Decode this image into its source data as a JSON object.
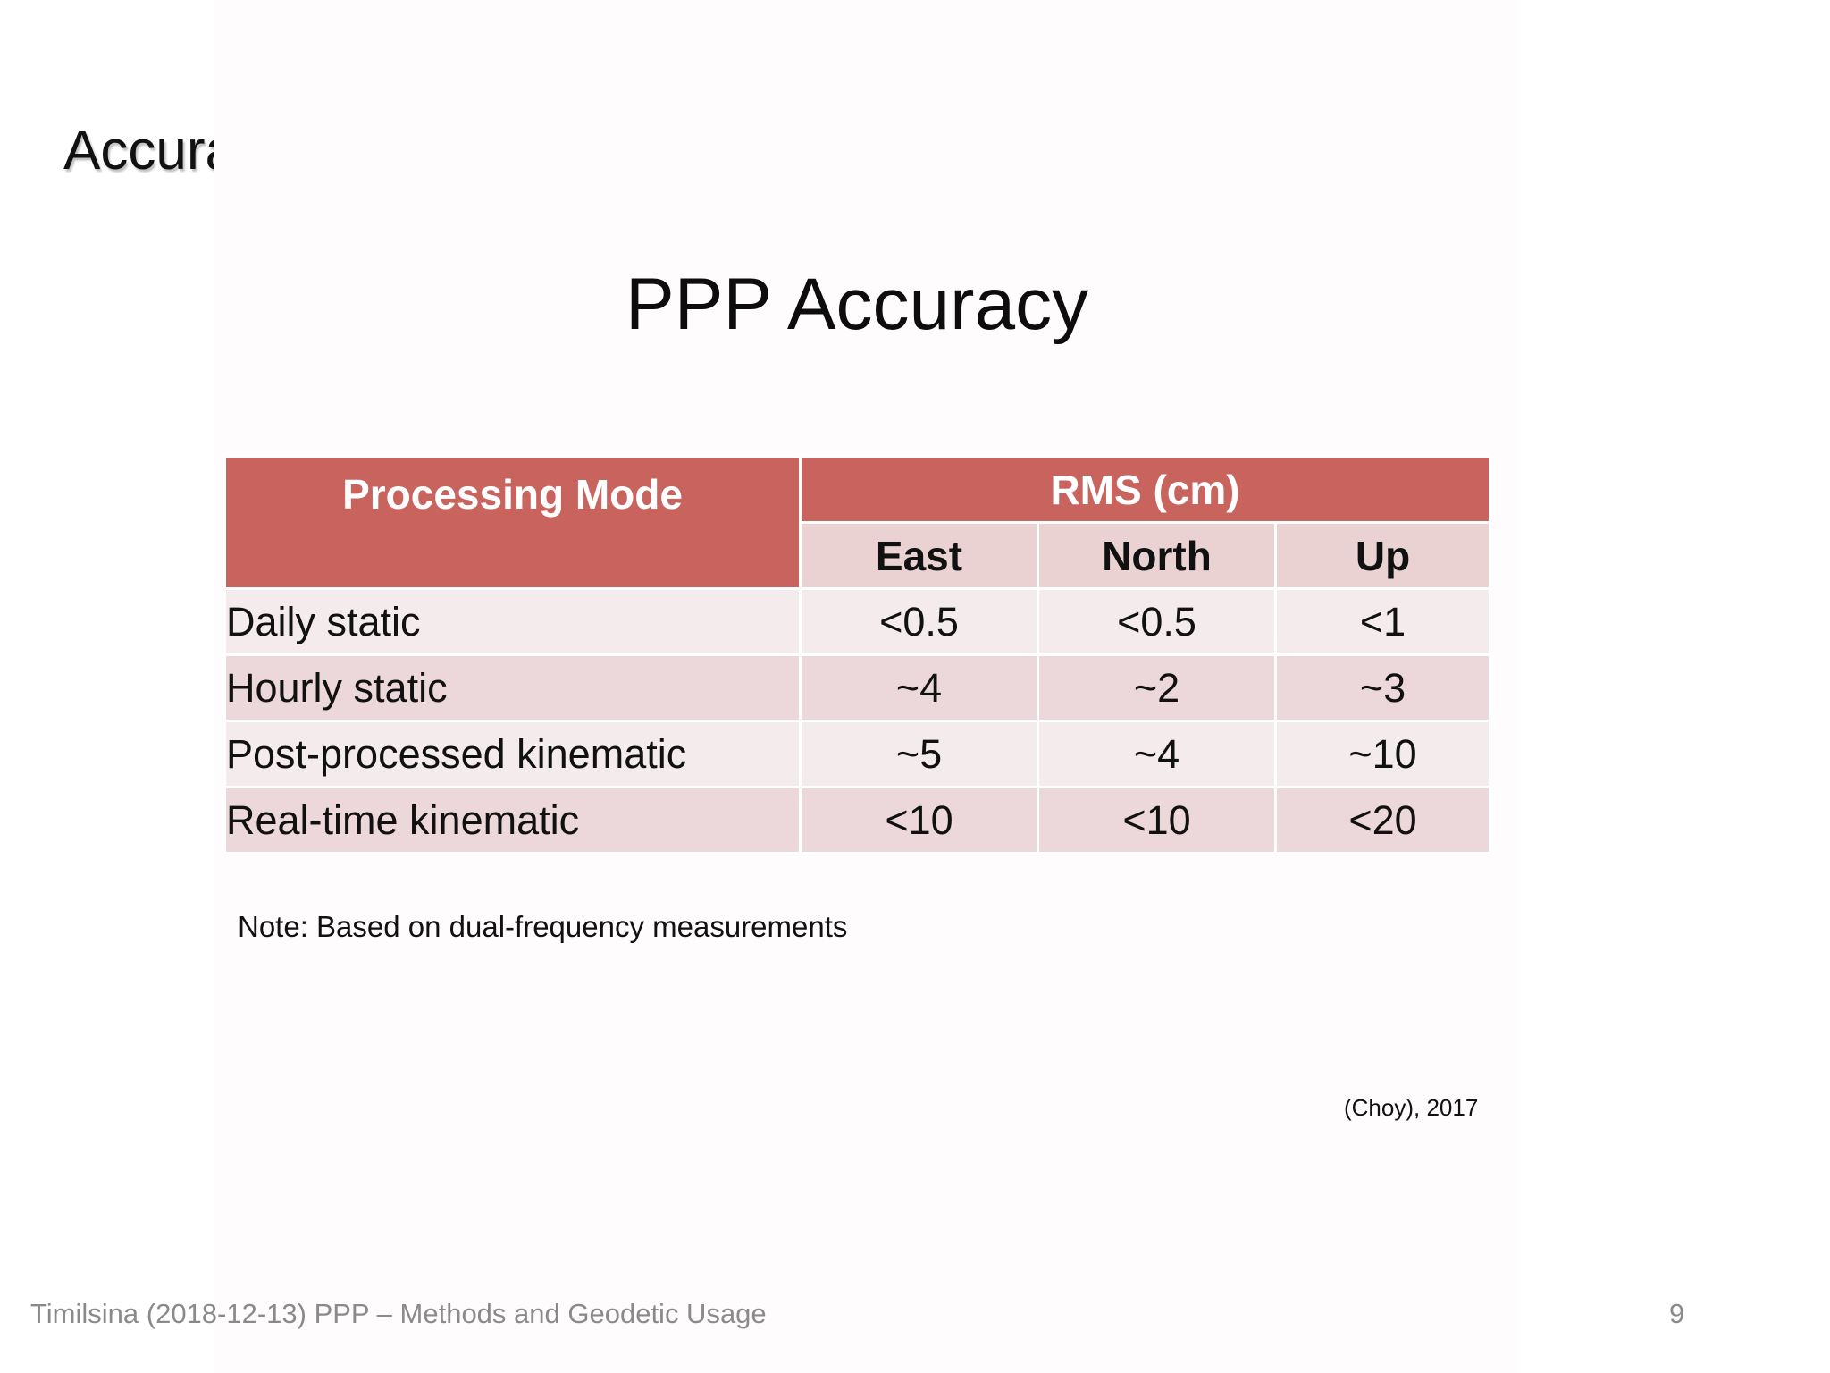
{
  "slide": {
    "heading": "Accuracy",
    "footer": "Timilsina (2018-12-13) PPP – Methods and Geodetic Usage",
    "page_number": "9"
  },
  "figure": {
    "title": "PPP Accuracy",
    "table": {
      "header_mode": "Processing Mode",
      "header_rms": "RMS (cm)",
      "subheaders": [
        "East",
        "North",
        "Up"
      ],
      "rows": [
        {
          "mode": "Daily static",
          "east": "<0.5",
          "north": "<0.5",
          "up": "<1"
        },
        {
          "mode": "Hourly static",
          "east": "~4",
          "north": "~2",
          "up": "~3"
        },
        {
          "mode": "Post-processed kinematic",
          "east": "~5",
          "north": "~4",
          "up": "~10"
        },
        {
          "mode": "Real-time kinematic",
          "east": "<10",
          "north": "<10",
          "up": "<20"
        }
      ]
    },
    "note": "Note: Based on dual-frequency measurements",
    "citation": "(Choy), 2017"
  },
  "colors": {
    "header_red": "#c9635e",
    "subheader_pink": "#ead2d3",
    "row_light": "#f3ebec",
    "row_dark": "#ecd7da",
    "footer_gray": "#8a8a8a"
  }
}
